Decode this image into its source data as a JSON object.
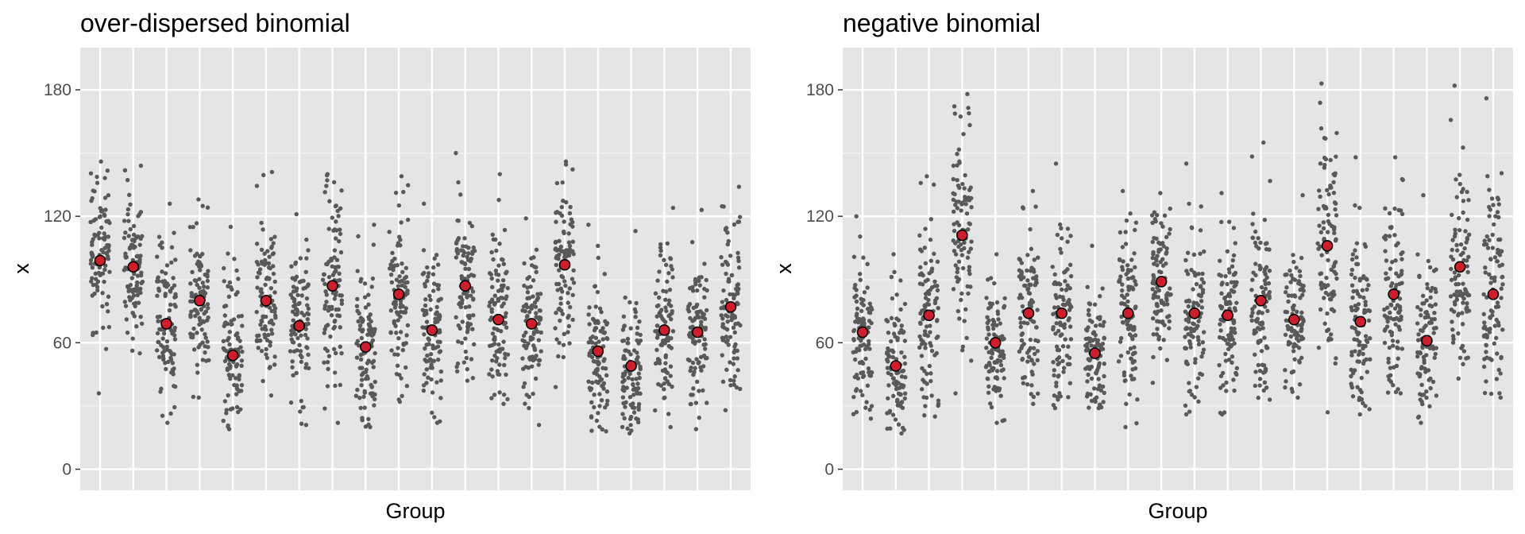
{
  "chart_data": [
    {
      "type": "scatter",
      "title": "over-dispersed binomial",
      "xlabel": "Group",
      "ylabel": "x",
      "ylim": [
        -10,
        200
      ],
      "yticks": [
        0,
        60,
        120,
        180
      ],
      "grid": true,
      "n_groups": 20,
      "point_color": "#595959",
      "mean_color": "#cc1f2b",
      "background": "#e5e5e5",
      "series": [
        {
          "group": 1,
          "mean": 99,
          "min": 36,
          "max": 146
        },
        {
          "group": 2,
          "mean": 96,
          "min": 55,
          "max": 144
        },
        {
          "group": 3,
          "mean": 69,
          "min": 22,
          "max": 126
        },
        {
          "group": 4,
          "mean": 80,
          "min": 34,
          "max": 128
        },
        {
          "group": 5,
          "mean": 54,
          "min": 19,
          "max": 115
        },
        {
          "group": 6,
          "mean": 80,
          "min": 35,
          "max": 141
        },
        {
          "group": 7,
          "mean": 68,
          "min": 21,
          "max": 121
        },
        {
          "group": 8,
          "mean": 87,
          "min": 22,
          "max": 140
        },
        {
          "group": 9,
          "mean": 58,
          "min": 20,
          "max": 116
        },
        {
          "group": 10,
          "mean": 83,
          "min": 32,
          "max": 139
        },
        {
          "group": 11,
          "mean": 66,
          "min": 22,
          "max": 126
        },
        {
          "group": 12,
          "mean": 87,
          "min": 42,
          "max": 150
        },
        {
          "group": 13,
          "mean": 71,
          "min": 31,
          "max": 140
        },
        {
          "group": 14,
          "mean": 69,
          "min": 21,
          "max": 119
        },
        {
          "group": 15,
          "mean": 97,
          "min": 39,
          "max": 146
        },
        {
          "group": 16,
          "mean": 56,
          "min": 18,
          "max": 116
        },
        {
          "group": 17,
          "mean": 49,
          "min": 17,
          "max": 113
        },
        {
          "group": 18,
          "mean": 66,
          "min": 20,
          "max": 124
        },
        {
          "group": 19,
          "mean": 65,
          "min": 19,
          "max": 123
        },
        {
          "group": 20,
          "mean": 77,
          "min": 28,
          "max": 134
        }
      ]
    },
    {
      "type": "scatter",
      "title": "negative binomial",
      "xlabel": "Group",
      "ylabel": "x",
      "ylim": [
        -10,
        200
      ],
      "yticks": [
        0,
        60,
        120,
        180
      ],
      "grid": true,
      "n_groups": 20,
      "point_color": "#595959",
      "mean_color": "#cc1f2b",
      "background": "#e5e5e5",
      "series": [
        {
          "group": 1,
          "mean": 65,
          "min": 24,
          "max": 120
        },
        {
          "group": 2,
          "mean": 49,
          "min": 17,
          "max": 102
        },
        {
          "group": 3,
          "mean": 73,
          "min": 25,
          "max": 139
        },
        {
          "group": 4,
          "mean": 111,
          "min": 36,
          "max": 178
        },
        {
          "group": 5,
          "mean": 60,
          "min": 22,
          "max": 102
        },
        {
          "group": 6,
          "mean": 74,
          "min": 31,
          "max": 132
        },
        {
          "group": 7,
          "mean": 74,
          "min": 29,
          "max": 145
        },
        {
          "group": 8,
          "mean": 55,
          "min": 29,
          "max": 106
        },
        {
          "group": 9,
          "mean": 74,
          "min": 20,
          "max": 132
        },
        {
          "group": 10,
          "mean": 89,
          "min": 41,
          "max": 131
        },
        {
          "group": 11,
          "mean": 74,
          "min": 26,
          "max": 145
        },
        {
          "group": 12,
          "mean": 73,
          "min": 26,
          "max": 131
        },
        {
          "group": 13,
          "mean": 80,
          "min": 33,
          "max": 155
        },
        {
          "group": 14,
          "mean": 71,
          "min": 34,
          "max": 130
        },
        {
          "group": 15,
          "mean": 106,
          "min": 27,
          "max": 183
        },
        {
          "group": 16,
          "mean": 70,
          "min": 26,
          "max": 148
        },
        {
          "group": 17,
          "mean": 83,
          "min": 36,
          "max": 148
        },
        {
          "group": 18,
          "mean": 61,
          "min": 22,
          "max": 130
        },
        {
          "group": 19,
          "mean": 96,
          "min": 43,
          "max": 182
        },
        {
          "group": 20,
          "mean": 83,
          "min": 34,
          "max": 176
        }
      ]
    }
  ]
}
